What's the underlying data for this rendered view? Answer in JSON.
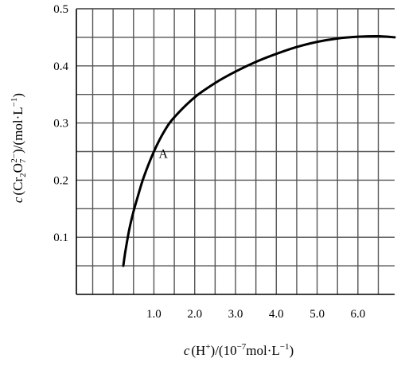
{
  "chart_data": {
    "type": "line",
    "xlabel": {
      "pre": "c",
      "open": "(H",
      "sup": "+",
      "mid": ")/(10",
      "sup2": "−7",
      "post": "mol·L",
      "sup3": "−1",
      "close": ")"
    },
    "ylabel": {
      "pre": "c",
      "open": "(Cr",
      "sub1": "2",
      "mid": "O",
      "sub2": "7",
      "sup": "2−",
      "close1": ")/(mol·L",
      "sup2": "−1",
      "close2": ")"
    },
    "xlim": [
      -0.9,
      6.9
    ],
    "ylim": [
      0,
      0.5
    ],
    "x_tick_labels": [
      "1.0",
      "2.0",
      "3.0",
      "4.0",
      "5.0",
      "6.0"
    ],
    "x_tick_values": [
      1,
      2,
      3,
      4,
      5,
      6
    ],
    "y_tick_labels": [
      "0.1",
      "0.2",
      "0.3",
      "0.4",
      "0.5"
    ],
    "y_tick_values": [
      0.1,
      0.2,
      0.3,
      0.4,
      0.5
    ],
    "x_grid_step": 0.5,
    "y_grid_step": 0.05,
    "grid": true,
    "series": [
      {
        "x": [
          0.25,
          0.3,
          0.4,
          0.5,
          0.6,
          0.75,
          1.0,
          1.25,
          1.5,
          2.0,
          2.5,
          3.0,
          3.5,
          4.0,
          4.5,
          5.0,
          5.5,
          6.0,
          6.5,
          6.9
        ],
        "y": [
          0.05,
          0.075,
          0.115,
          0.145,
          0.17,
          0.205,
          0.25,
          0.285,
          0.31,
          0.345,
          0.37,
          0.39,
          0.407,
          0.421,
          0.433,
          0.442,
          0.448,
          0.451,
          0.452,
          0.45
        ]
      }
    ],
    "annotations": [
      {
        "text": "A",
        "x": 1.0,
        "y": 0.25
      }
    ]
  }
}
